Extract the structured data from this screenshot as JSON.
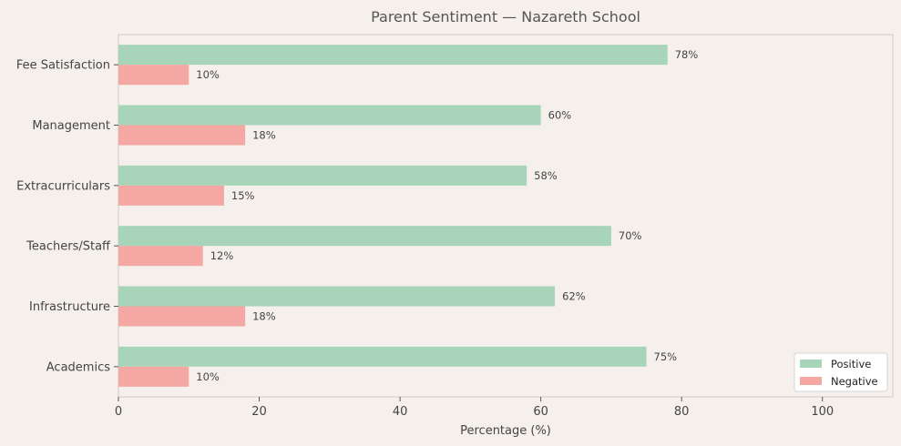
{
  "chart_data": {
    "type": "bar",
    "orientation": "horizontal",
    "title": "Parent Sentiment — Nazareth School",
    "xlabel": "Percentage (%)",
    "ylabel": "",
    "xlim": [
      0,
      110
    ],
    "x_ticks": [
      0,
      20,
      40,
      60,
      80,
      100
    ],
    "grid": false,
    "legend_position": "bottom-right",
    "categories": [
      "Fee Satisfaction",
      "Management",
      "Extracurriculars",
      "Teachers/Staff",
      "Infrastructure",
      "Academics"
    ],
    "series": [
      {
        "name": "Positive",
        "color": "#a8d5ba",
        "values": [
          78,
          60,
          58,
          70,
          62,
          75
        ],
        "labels": [
          "78%",
          "60%",
          "58%",
          "70%",
          "62%",
          "75%"
        ]
      },
      {
        "name": "Negative",
        "color": "#f4a7a3",
        "values": [
          10,
          18,
          15,
          12,
          18,
          10
        ],
        "labels": [
          "10%",
          "18%",
          "15%",
          "12%",
          "18%",
          "10%"
        ]
      }
    ]
  }
}
